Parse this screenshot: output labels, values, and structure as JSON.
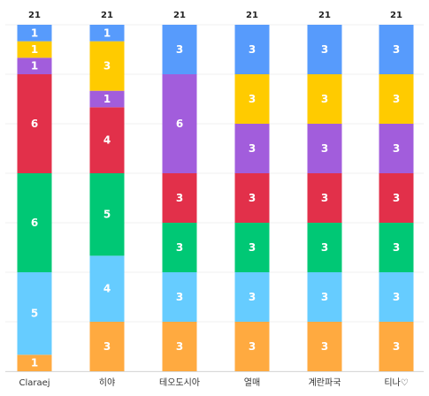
{
  "chart_data": {
    "type": "bar",
    "stacked": true,
    "grid": true,
    "categories": [
      "Claraej",
      "히야",
      "테오도시아",
      "열매",
      "계란파국",
      "티나♡"
    ],
    "totals": [
      21,
      21,
      21,
      21,
      21,
      21
    ],
    "colors": [
      "#FFAA40",
      "#66CCFF",
      "#00C875",
      "#E2304A",
      "#A25DDC",
      "#FFCB00",
      "#579BFC"
    ],
    "series": [
      {
        "color": "#FFAA40",
        "values": [
          1,
          3,
          3,
          3,
          3,
          3
        ]
      },
      {
        "color": "#66CCFF",
        "values": [
          5,
          4,
          3,
          3,
          3,
          3
        ]
      },
      {
        "color": "#00C875",
        "values": [
          6,
          5,
          3,
          3,
          3,
          3
        ]
      },
      {
        "color": "#E2304A",
        "values": [
          6,
          4,
          3,
          3,
          3,
          3
        ]
      },
      {
        "color": "#A25DDC",
        "values": [
          1,
          1,
          6,
          3,
          3,
          3
        ]
      },
      {
        "color": "#FFCB00",
        "values": [
          1,
          3,
          0,
          3,
          3,
          3
        ]
      },
      {
        "color": "#579BFC",
        "values": [
          1,
          1,
          3,
          3,
          3,
          3
        ]
      }
    ],
    "ylim": [
      0,
      21
    ]
  }
}
